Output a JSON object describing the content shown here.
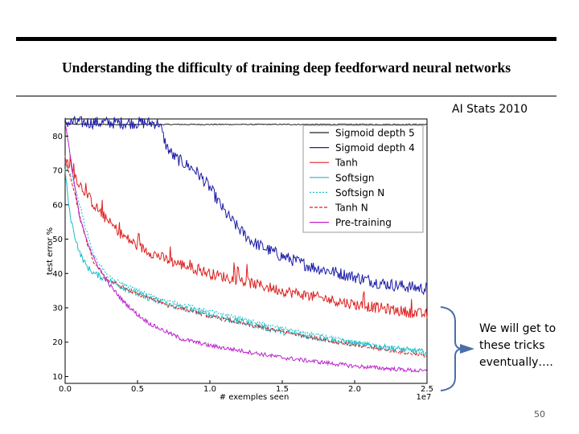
{
  "slide": {
    "paper_title": "Understanding the difficulty of training deep feedforward neural networks",
    "venue": "AI Stats 2010",
    "note": "We will get to these tricks eventually….",
    "page_number": "50"
  },
  "chart_data": {
    "type": "line",
    "title": "",
    "xlabel": "# exemples seen",
    "ylabel": "test error %",
    "x_scale_label": "1e7",
    "xlim": [
      0,
      2.5
    ],
    "ylim": [
      8,
      85
    ],
    "xticks": [
      0.0,
      0.5,
      1.0,
      1.5,
      2.0,
      2.5
    ],
    "xtick_labels": [
      "0.0",
      "0.5",
      "1.0",
      "1.5",
      "2.0",
      "2.5"
    ],
    "yticks": [
      10,
      20,
      30,
      40,
      50,
      60,
      70,
      80
    ],
    "ytick_labels": [
      "10",
      "20",
      "30",
      "40",
      "50",
      "60",
      "70",
      "80"
    ],
    "grid": false,
    "legend_position": "top-right",
    "series": [
      {
        "name": "Sigmoid depth 5",
        "color": "#222222",
        "style": "solid",
        "x": [
          0,
          0.2,
          0.5,
          1.0,
          1.5,
          2.0,
          2.5
        ],
        "y": [
          83.5,
          83.4,
          83.4,
          83.4,
          83.4,
          83.4,
          83.4
        ]
      },
      {
        "name": "Sigmoid depth 4",
        "color": "#1a1aa8",
        "style": "solid",
        "x": [
          0,
          0.65,
          0.7,
          0.75,
          0.9,
          1.0,
          1.1,
          1.2,
          1.3,
          1.5,
          1.7,
          2.0,
          2.2,
          2.5
        ],
        "y": [
          84,
          83.8,
          77,
          74,
          70,
          65,
          58,
          53,
          49,
          45,
          42,
          39,
          37,
          35.5
        ]
      },
      {
        "name": "Tanh",
        "color": "#dd2020",
        "style": "solid",
        "x": [
          0,
          0.05,
          0.1,
          0.2,
          0.3,
          0.4,
          0.5,
          0.7,
          1.0,
          1.5,
          2.0,
          2.5
        ],
        "y": [
          73,
          70,
          66,
          60,
          55,
          51,
          48,
          44,
          40,
          35,
          31,
          28
        ]
      },
      {
        "name": "Softsign",
        "color": "#17bcc8",
        "style": "solid",
        "x": [
          0,
          0.03,
          0.06,
          0.1,
          0.15,
          0.2,
          0.3,
          0.5,
          0.7,
          1.0,
          1.5,
          2.0,
          2.5
        ],
        "y": [
          70,
          58,
          52,
          46,
          42,
          40,
          38,
          34,
          31,
          28,
          23,
          19.5,
          17
        ]
      },
      {
        "name": "Softsign N",
        "color": "#17bcc8",
        "style": "dotted",
        "x": [
          0,
          0.05,
          0.1,
          0.15,
          0.2,
          0.3,
          0.5,
          0.7,
          1.0,
          1.5,
          2.0,
          2.5
        ],
        "y": [
          72,
          68,
          60,
          52,
          45,
          39,
          35,
          32,
          29,
          24,
          20,
          17
        ]
      },
      {
        "name": "Tanh N",
        "color": "#dd2020",
        "style": "dashed",
        "x": [
          0,
          0.05,
          0.1,
          0.15,
          0.2,
          0.3,
          0.5,
          0.7,
          1.0,
          1.5,
          2.0,
          2.5
        ],
        "y": [
          73,
          66,
          57,
          49,
          43,
          38,
          34,
          31,
          27.5,
          23,
          19,
          16
        ]
      },
      {
        "name": "Pre-training",
        "color": "#bb22cc",
        "style": "solid",
        "x": [
          0,
          0.1,
          0.2,
          0.3,
          0.4,
          0.5,
          0.6,
          0.8,
          1.0,
          1.5,
          2.0,
          2.5
        ],
        "y": [
          84,
          56,
          44,
          37,
          32,
          28,
          25,
          21,
          19,
          15.5,
          13,
          11.5
        ]
      }
    ]
  }
}
